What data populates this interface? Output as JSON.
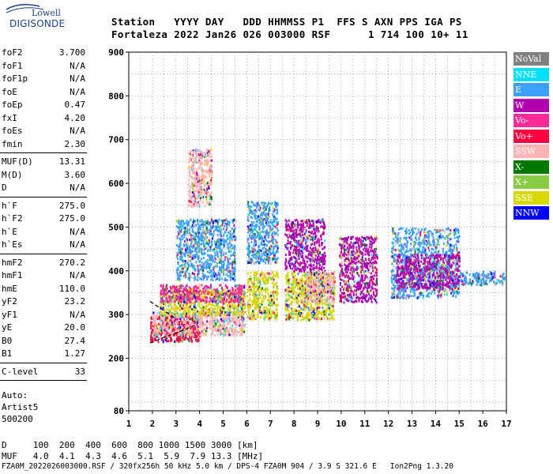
{
  "logo": {
    "line1": "Lowell",
    "line2": "DIGISONDE"
  },
  "header": {
    "line1": "Station   YYYY DAY   DDD HHMMSS P1  FFS S AXN PPS IGA PS",
    "line2": "Fortaleza 2022 Jan26 026 003000 RSF      1 714 100 10+ 11"
  },
  "params": {
    "group1": [
      {
        "label": "foF2",
        "value": "3.700"
      },
      {
        "label": "foF1",
        "value": "N/A"
      },
      {
        "label": "foF1p",
        "value": "N/A"
      },
      {
        "label": "foE",
        "value": "N/A"
      },
      {
        "label": "foEp",
        "value": "0.47"
      },
      {
        "label": "fxI",
        "value": "4.20"
      },
      {
        "label": "foEs",
        "value": "N/A"
      },
      {
        "label": "fmin",
        "value": "2.30"
      }
    ],
    "group2": [
      {
        "label": "MUF(D)",
        "value": "13.31"
      },
      {
        "label": "M(D)",
        "value": "3.60"
      },
      {
        "label": "D",
        "value": "N/A"
      }
    ],
    "group3": [
      {
        "label": "h`F",
        "value": "275.0"
      },
      {
        "label": "h`F2",
        "value": "275.0"
      },
      {
        "label": "h`E",
        "value": "N/A"
      },
      {
        "label": "h`Es",
        "value": "N/A"
      }
    ],
    "group4": [
      {
        "label": "hmF2",
        "value": "270.2"
      },
      {
        "label": "hmF1",
        "value": "N/A"
      },
      {
        "label": "hmE",
        "value": "110.0"
      },
      {
        "label": "yF2",
        "value": "23.2"
      },
      {
        "label": "yF1",
        "value": "N/A"
      },
      {
        "label": "yE",
        "value": "20.0"
      },
      {
        "label": "B0",
        "value": "27.4"
      },
      {
        "label": "B1",
        "value": "1.27"
      }
    ],
    "group5": [
      {
        "label": "C-level",
        "value": "33"
      }
    ],
    "auto": [
      "Auto:",
      "Artist5",
      "500200"
    ]
  },
  "legend": [
    {
      "label": "NoVal",
      "color": "#808080"
    },
    {
      "label": "NNE",
      "color": "#00e0ff"
    },
    {
      "label": "E",
      "color": "#3ba0ff"
    },
    {
      "label": "W",
      "color": "#b000b0"
    },
    {
      "label": "Vo-",
      "color": "#ff2a9a"
    },
    {
      "label": "Vo+",
      "color": "#ff0040"
    },
    {
      "label": "SSW",
      "color": "#ffb4b4"
    },
    {
      "label": "X-",
      "color": "#007800"
    },
    {
      "label": "X+",
      "color": "#88cc44"
    },
    {
      "label": "SSE",
      "color": "#d8d800"
    },
    {
      "label": "NNW",
      "color": "#0000ff"
    }
  ],
  "chart_data": {
    "type": "scatter",
    "title": "",
    "xlabel": "",
    "ylabel": "",
    "xlim": [
      1,
      17
    ],
    "ylim": [
      80,
      900
    ],
    "x_ticks": [
      "1",
      "2",
      "3",
      "4",
      "5",
      "6",
      "7",
      "8",
      "9",
      "10",
      "11",
      "12",
      "13",
      "14",
      "15",
      "16",
      "17"
    ],
    "y_ticks": [
      "80",
      "200",
      "300",
      "400",
      "500",
      "600",
      "700",
      "800",
      "900"
    ],
    "grid": true,
    "legend_position": "right",
    "clusters": [
      {
        "x": [
          1.9,
          4.0
        ],
        "y": [
          240,
          300
        ],
        "color": "#ff0040"
      },
      {
        "x": [
          2.0,
          5.9
        ],
        "y": [
          255,
          310
        ],
        "color": "#ffb4b4"
      },
      {
        "x": [
          2.3,
          5.9
        ],
        "y": [
          300,
          360
        ],
        "color": "#d8d800"
      },
      {
        "x": [
          2.3,
          5.9
        ],
        "y": [
          330,
          370
        ],
        "color": "#ff2a9a"
      },
      {
        "x": [
          3.0,
          5.5
        ],
        "y": [
          380,
          520
        ],
        "color": "#3ba0ff"
      },
      {
        "x": [
          3.5,
          4.5
        ],
        "y": [
          550,
          680
        ],
        "color": "#ffb4b4"
      },
      {
        "x": [
          6.0,
          7.3
        ],
        "y": [
          290,
          400
        ],
        "color": "#d8d800"
      },
      {
        "x": [
          6.0,
          7.3
        ],
        "y": [
          420,
          560
        ],
        "color": "#3ba0ff"
      },
      {
        "x": [
          7.6,
          9.7
        ],
        "y": [
          290,
          400
        ],
        "color": "#d8d800"
      },
      {
        "x": [
          7.6,
          9.3
        ],
        "y": [
          400,
          520
        ],
        "color": "#b000b0"
      },
      {
        "x": [
          8.5,
          9.7
        ],
        "y": [
          330,
          400
        ],
        "color": "#ffb4b4"
      },
      {
        "x": [
          9.9,
          11.5
        ],
        "y": [
          330,
          480
        ],
        "color": "#b000b0"
      },
      {
        "x": [
          12.1,
          15.0
        ],
        "y": [
          340,
          500
        ],
        "color": "#3ba0ff"
      },
      {
        "x": [
          12.3,
          15.0
        ],
        "y": [
          360,
          440
        ],
        "color": "#b000b0"
      },
      {
        "x": [
          15.0,
          16.9
        ],
        "y": [
          370,
          400
        ],
        "color": "#3ba0ff"
      }
    ],
    "trace_curves": [
      {
        "x": [
          1.9,
          2.6,
          3.2,
          3.8
        ],
        "y": [
          235,
          250,
          262,
          275
        ],
        "style": "dashed"
      },
      {
        "x": [
          1.9,
          2.6,
          3.0
        ],
        "y": [
          330,
          305,
          290
        ],
        "style": "dashed"
      }
    ]
  },
  "footer": {
    "line1": "D     100  200  400  600  800 1000 1500 3000 [km]",
    "line2": "MUF   4.0  4.1  4.3  4.6  5.1  5.9  7.9 13.3 [MHz]",
    "line3": "FZA0M_2022026003000.RSF / 320fx256h 50 kHz 5.0 km / DPS-4 FZA0M 904 / 3.9 S 321.6 E   Ion2Png 1.3.20"
  }
}
